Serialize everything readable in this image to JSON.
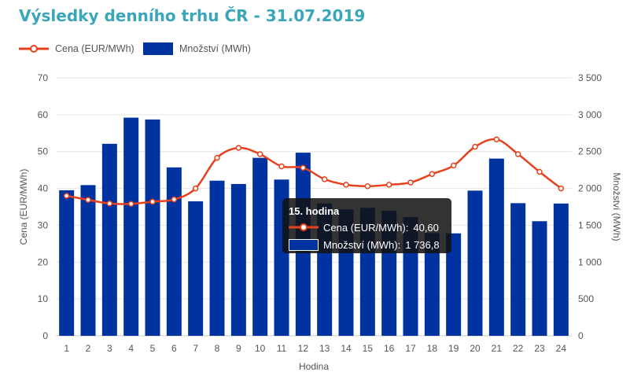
{
  "title": "Výsledky denního trhu ČR - 31.07.2019",
  "colors": {
    "title": "#3aa6b9",
    "price_line": "#e8401c",
    "volume_bar": "#0033a0",
    "grid": "#e6e6e6",
    "tooltip_bg": "#121212"
  },
  "chart_data": {
    "type": "bar+line",
    "title": "Výsledky denního trhu ČR - 31.07.2019",
    "xlabel": "Hodina",
    "ylabel_left": "Cena (EUR/MWh)",
    "ylabel_right": "Množství (MWh)",
    "ylim_left": [
      0,
      70
    ],
    "ylim_right": [
      0,
      3500
    ],
    "left_ticks": [
      "0",
      "10",
      "20",
      "30",
      "40",
      "50",
      "60",
      "70"
    ],
    "right_ticks": [
      "0",
      "500",
      "1 000",
      "1 500",
      "2 000",
      "2 500",
      "3 000",
      "3 500"
    ],
    "categories": [
      "1",
      "2",
      "3",
      "4",
      "5",
      "6",
      "7",
      "8",
      "9",
      "10",
      "11",
      "12",
      "13",
      "14",
      "15",
      "16",
      "17",
      "18",
      "19",
      "20",
      "21",
      "22",
      "23",
      "24"
    ],
    "grid": true,
    "legend_position": "top-left",
    "series": [
      {
        "name": "Cena (EUR/MWh)",
        "type": "line",
        "axis": "left",
        "values": [
          38.0,
          36.9,
          35.9,
          35.8,
          36.4,
          37.0,
          40.0,
          48.3,
          51.0,
          49.3,
          46.0,
          45.6,
          42.5,
          41.0,
          40.6,
          41.0,
          41.6,
          43.9,
          46.2,
          51.3,
          53.3,
          49.3,
          44.5,
          40.0
        ]
      },
      {
        "name": "Množství (MWh)",
        "type": "bar",
        "axis": "right",
        "values": [
          1975,
          2045,
          2605,
          2960,
          2935,
          2285,
          1825,
          2105,
          2060,
          2415,
          2120,
          2485,
          1795,
          1715,
          1736.8,
          1695,
          1610,
          1395,
          1390,
          1970,
          2405,
          1800,
          1555,
          1795
        ]
      }
    ]
  },
  "legend": {
    "items": [
      {
        "label": "Cena (EUR/MWh)"
      },
      {
        "label": "Množství (MWh)"
      }
    ]
  },
  "tooltip": {
    "title": "15. hodina",
    "price_label": "Cena (EUR/MWh):",
    "price_value": "40,60",
    "volume_label": "Množství (MWh):",
    "volume_value": "1 736,8"
  }
}
